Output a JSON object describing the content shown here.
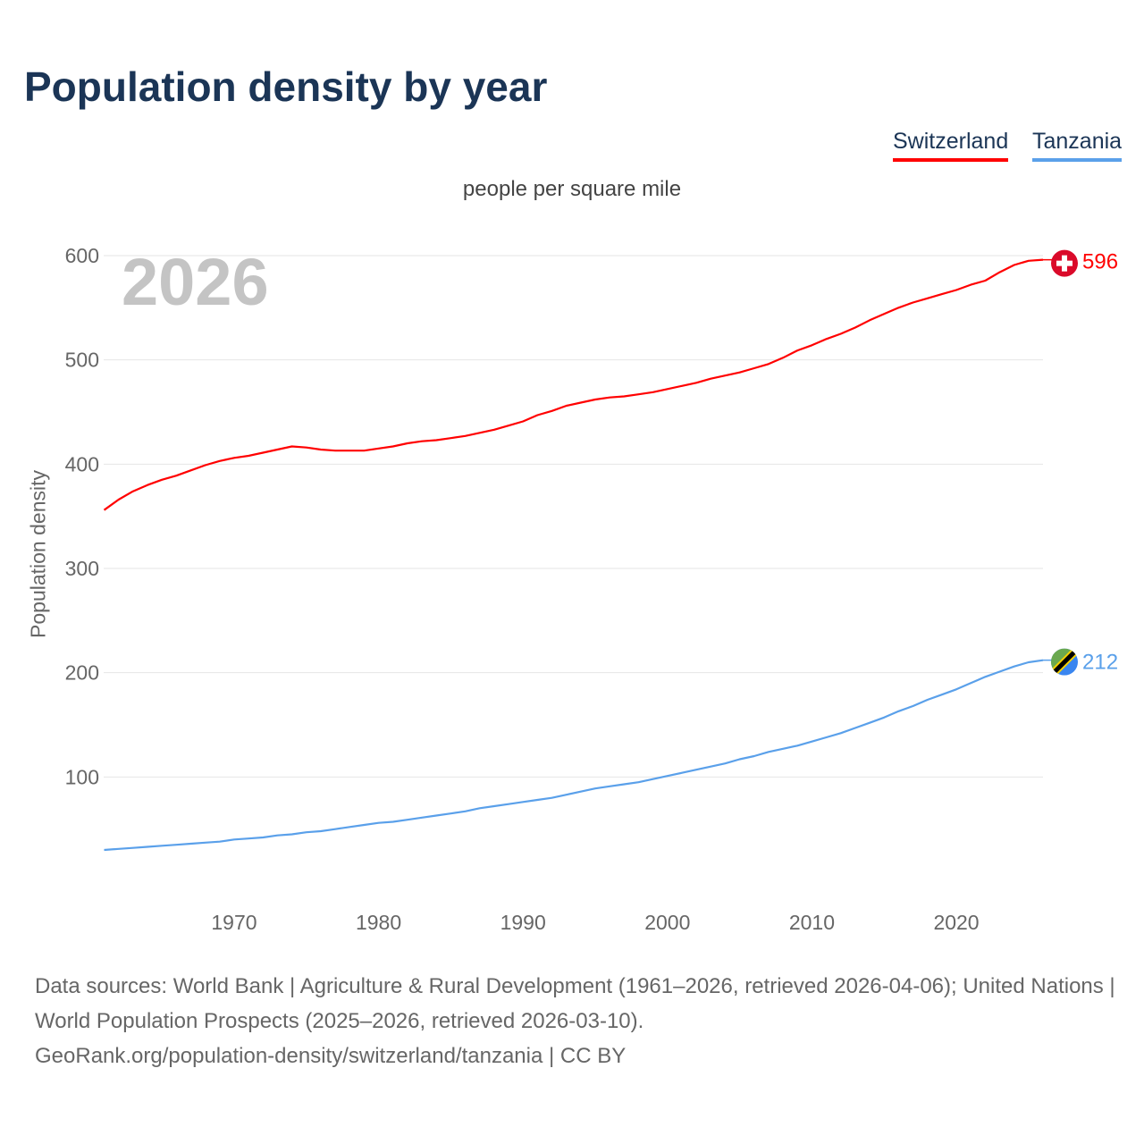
{
  "title": "Population density by year",
  "legend": [
    "Switzerland",
    "Tanzania"
  ],
  "chart_data": {
    "type": "line",
    "title": "Population density by year",
    "subtitle": "people per square mile",
    "xlabel": "",
    "ylabel": "Population density",
    "year_overlay": "2026",
    "xlim": [
      1961,
      2026
    ],
    "ylim": [
      0,
      600
    ],
    "x_ticks": [
      1970,
      1980,
      1990,
      2000,
      2010,
      2020
    ],
    "y_ticks": [
      100,
      200,
      300,
      400,
      500,
      600
    ],
    "grid": true,
    "legend_position": "top-right",
    "x": [
      1961,
      1962,
      1963,
      1964,
      1965,
      1966,
      1967,
      1968,
      1969,
      1970,
      1971,
      1972,
      1973,
      1974,
      1975,
      1976,
      1977,
      1978,
      1979,
      1980,
      1981,
      1982,
      1983,
      1984,
      1985,
      1986,
      1987,
      1988,
      1989,
      1990,
      1991,
      1992,
      1993,
      1994,
      1995,
      1996,
      1997,
      1998,
      1999,
      2000,
      2001,
      2002,
      2003,
      2004,
      2005,
      2006,
      2007,
      2008,
      2009,
      2010,
      2011,
      2012,
      2013,
      2014,
      2015,
      2016,
      2017,
      2018,
      2019,
      2020,
      2021,
      2022,
      2023,
      2024,
      2025,
      2026
    ],
    "series": [
      {
        "name": "Switzerland",
        "color": "#ff0000",
        "end_label": "596",
        "flag": "switzerland-flag",
        "values": [
          356,
          366,
          374,
          380,
          385,
          389,
          394,
          399,
          403,
          406,
          408,
          411,
          414,
          417,
          416,
          414,
          413,
          413,
          413,
          415,
          417,
          420,
          422,
          423,
          425,
          427,
          430,
          433,
          437,
          441,
          447,
          451,
          456,
          459,
          462,
          464,
          465,
          467,
          469,
          472,
          475,
          478,
          482,
          485,
          488,
          492,
          496,
          502,
          509,
          514,
          520,
          525,
          531,
          538,
          544,
          550,
          555,
          559,
          563,
          567,
          572,
          576,
          584,
          591,
          595,
          596
        ]
      },
      {
        "name": "Tanzania",
        "color": "#5aa0ea",
        "end_label": "212",
        "flag": "tanzania-flag",
        "values": [
          30,
          31,
          32,
          33,
          34,
          35,
          36,
          37,
          38,
          40,
          41,
          42,
          44,
          45,
          47,
          48,
          50,
          52,
          54,
          56,
          57,
          59,
          61,
          63,
          65,
          67,
          70,
          72,
          74,
          76,
          78,
          80,
          83,
          86,
          89,
          91,
          93,
          95,
          98,
          101,
          104,
          107,
          110,
          113,
          117,
          120,
          124,
          127,
          130,
          134,
          138,
          142,
          147,
          152,
          157,
          163,
          168,
          174,
          179,
          184,
          190,
          196,
          201,
          206,
          210,
          212
        ]
      }
    ]
  },
  "footer": {
    "line1": "Data sources: World Bank | Agriculture & Rural Development (1961–2026, retrieved 2026-04-06); United Nations | World Population Prospects (2025–2026, retrieved 2026-03-10).",
    "line2": "GeoRank.org/population-density/switzerland/tanzania | CC BY"
  }
}
